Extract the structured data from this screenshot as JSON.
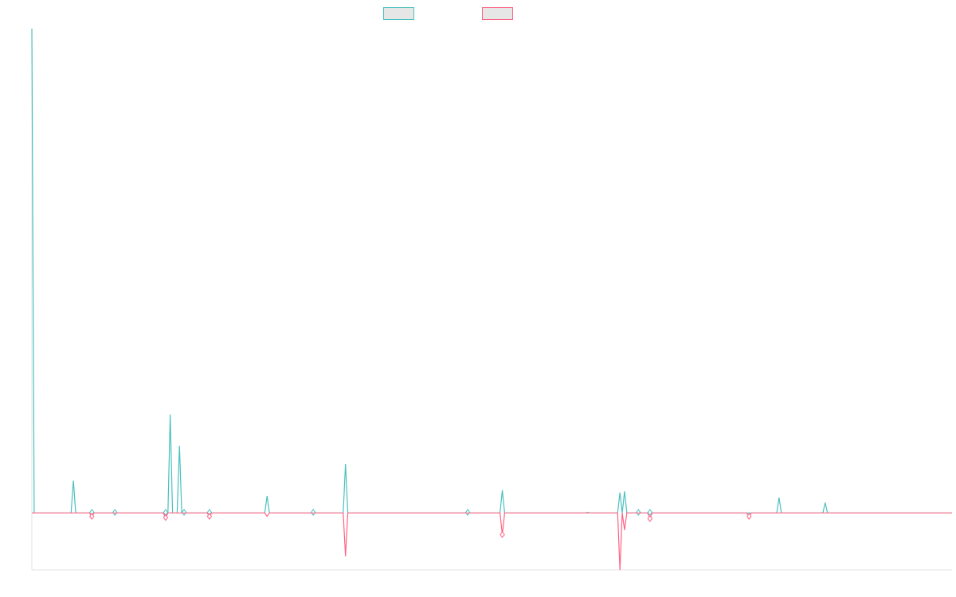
{
  "chart_data": {
    "type": "line",
    "x": [
      0,
      1,
      2,
      3,
      4,
      5,
      6,
      7,
      8,
      9,
      10,
      11,
      12,
      13,
      14,
      15,
      16,
      17,
      18,
      19,
      20,
      21,
      22,
      23,
      24,
      25,
      26,
      27,
      28,
      29,
      30,
      31,
      32,
      33,
      34,
      35,
      36,
      37,
      38,
      39,
      40,
      41,
      42,
      43,
      44,
      45,
      46,
      47,
      48,
      49,
      50,
      51,
      52,
      53,
      54,
      55,
      56,
      57,
      58,
      59,
      60,
      61,
      62,
      63,
      64,
      65,
      66,
      67,
      68,
      69,
      70,
      71,
      72,
      73,
      74,
      75,
      76,
      77,
      78,
      79,
      80,
      81,
      82,
      83,
      84,
      85,
      86,
      87,
      88,
      89,
      90,
      91,
      92,
      93,
      94,
      95,
      96,
      97,
      98,
      99,
      100,
      101,
      102,
      103,
      104,
      105,
      106,
      107,
      108,
      109,
      110,
      111,
      112,
      113,
      114,
      115,
      116,
      117,
      118,
      119,
      120,
      121,
      122,
      123,
      124,
      125,
      126,
      127,
      128,
      129,
      130,
      131,
      132,
      133,
      134,
      135,
      136,
      137,
      138,
      139,
      140,
      141,
      142,
      143,
      144,
      145,
      146,
      147,
      148,
      149,
      150,
      151,
      152,
      153,
      154,
      155,
      156,
      157,
      158,
      159,
      160,
      161,
      162,
      163,
      164,
      165,
      166,
      167,
      168,
      169,
      170,
      171,
      172,
      173,
      174,
      175,
      176,
      177,
      178,
      179,
      180,
      181,
      182,
      183,
      184,
      185,
      186,
      187,
      188,
      189,
      190,
      191,
      192,
      193,
      194,
      195,
      196,
      197,
      198,
      199,
      200,
      201,
      202,
      203,
      204,
      205,
      206,
      207,
      208,
      209,
      210,
      211,
      212,
      213,
      214,
      215,
      216,
      217,
      218,
      219,
      220,
      221,
      222,
      223,
      224,
      225,
      226,
      227,
      228,
      229,
      230,
      231,
      232,
      233,
      234,
      235,
      236,
      237,
      238,
      239,
      240,
      241,
      242,
      243,
      244,
      245,
      246,
      247,
      248,
      249,
      250,
      251,
      252,
      253,
      254,
      255,
      256,
      257,
      258,
      259,
      260,
      261,
      262,
      263,
      264,
      265,
      266,
      267,
      268,
      269,
      270,
      271,
      272,
      273,
      274,
      275,
      276,
      277,
      278,
      279,
      280,
      281,
      282,
      283,
      284,
      285,
      286,
      287,
      288,
      289,
      290,
      291,
      292,
      293,
      294,
      295,
      296,
      297,
      298,
      299,
      300,
      301,
      302,
      303,
      304,
      305,
      306,
      307,
      308,
      309,
      310,
      311,
      312,
      313,
      314,
      315,
      316,
      317,
      318,
      319,
      320,
      321,
      322,
      323,
      324,
      325,
      326,
      327,
      328,
      329,
      330,
      331,
      332,
      333,
      334,
      335,
      336,
      337,
      338,
      339,
      340,
      341,
      342,
      343,
      344,
      345,
      346,
      347,
      348,
      349,
      350,
      351,
      352,
      353,
      354,
      355,
      356,
      357,
      358,
      359,
      360,
      361,
      362,
      363,
      364,
      365,
      366,
      367,
      368,
      369,
      370,
      371,
      372,
      373,
      374,
      375,
      376,
      377,
      378,
      379,
      380,
      381,
      382,
      383,
      384,
      385,
      386,
      387,
      388,
      389,
      390,
      391,
      392,
      393,
      394,
      395,
      396,
      397,
      398,
      399
    ],
    "series": [
      {
        "color": "#4bc0c0",
        "values": {
          "0": 850,
          "18": 57,
          "26": 1,
          "36": 1,
          "58": 1,
          "60": 173,
          "64": 118,
          "66": 1,
          "77": 1,
          "102": 30,
          "122": 1,
          "136": 86,
          "189": 1,
          "204": 40,
          "241": 1,
          "255": 36,
          "257": 38,
          "263": 1,
          "268": 1,
          "324": 27,
          "344": 18
        },
        "marker_indices": [
          26,
          36,
          58,
          66,
          77,
          122,
          189,
          263,
          268
        ]
      },
      {
        "color": "#ff6384",
        "values": {
          "26": -6,
          "58": -8,
          "77": -6,
          "102": -6,
          "136": -76,
          "204": -38,
          "255": -100,
          "257": -30,
          "268": -10,
          "311": -6
        },
        "marker_indices": [
          26,
          58,
          77,
          204,
          268,
          311
        ]
      }
    ],
    "ylim": [
      -100,
      850
    ],
    "xlim": [
      0,
      399
    ],
    "grid": false,
    "legend": "top"
  }
}
